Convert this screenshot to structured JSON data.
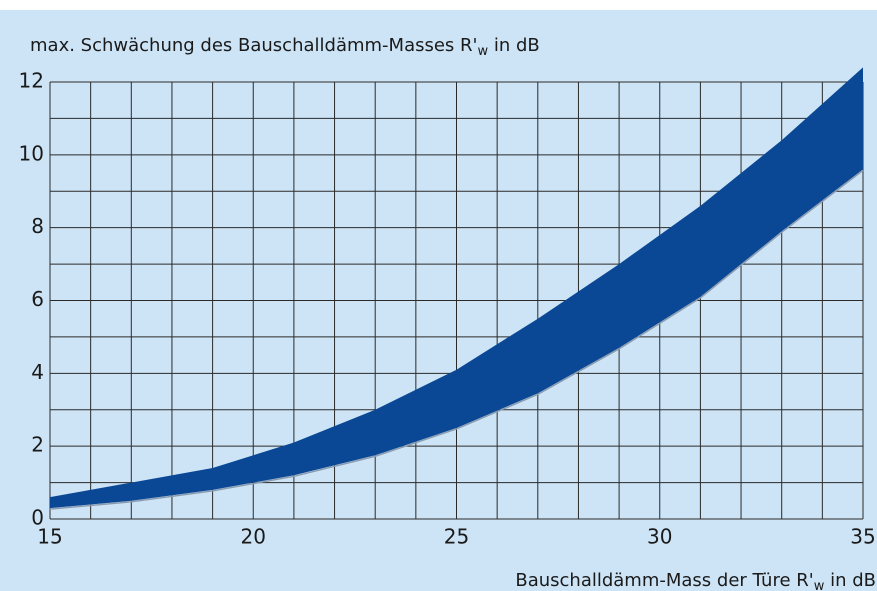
{
  "chart_data": {
    "type": "band",
    "title": [
      "max. Schwächung des Bauschalldämm-Masses R'",
      "w",
      " in dB"
    ],
    "x_label": [
      "Bauschalldämm-Mass der Türe R'",
      "w",
      " in dB"
    ],
    "x": [
      15,
      17,
      19,
      21,
      23,
      25,
      27,
      29,
      31,
      33,
      35
    ],
    "values_high": [
      0.6,
      1.0,
      1.4,
      2.1,
      3.0,
      4.1,
      5.5,
      7.0,
      8.6,
      10.4,
      12.4
    ],
    "values_low": [
      0.3,
      0.5,
      0.8,
      1.2,
      1.75,
      2.5,
      3.45,
      4.7,
      6.1,
      7.9,
      9.6
    ],
    "color": "#0a4896",
    "edge_color": "#8a9bb0",
    "background": "#cde4f6",
    "xlim": [
      15,
      35
    ],
    "ylim": [
      0,
      12
    ],
    "xticks": [
      15,
      20,
      25,
      30,
      35
    ],
    "yticks": [
      0,
      2,
      4,
      6,
      8,
      10,
      12
    ],
    "xgrid": [
      15,
      16,
      17,
      18,
      19,
      20,
      21,
      22,
      23,
      24,
      25,
      26,
      27,
      28,
      29,
      30,
      31,
      32,
      33,
      34,
      35
    ],
    "ygrid": [
      0,
      1,
      2,
      3,
      4,
      5,
      6,
      7,
      8,
      9,
      10,
      11,
      12
    ],
    "grid": true
  }
}
